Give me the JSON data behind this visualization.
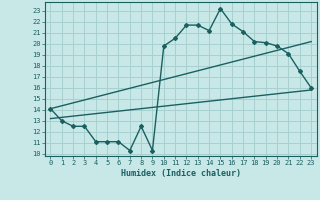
{
  "title": "",
  "xlabel": "Humidex (Indice chaleur)",
  "ylabel": "",
  "background_color": "#c8e8e8",
  "grid_color": "#a8d0d0",
  "line_color": "#1a6060",
  "xlim": [
    -0.5,
    23.5
  ],
  "ylim": [
    9.8,
    23.8
  ],
  "xticks": [
    0,
    1,
    2,
    3,
    4,
    5,
    6,
    7,
    8,
    9,
    10,
    11,
    12,
    13,
    14,
    15,
    16,
    17,
    18,
    19,
    20,
    21,
    22,
    23
  ],
  "yticks": [
    10,
    11,
    12,
    13,
    14,
    15,
    16,
    17,
    18,
    19,
    20,
    21,
    22,
    23
  ],
  "wavy_x": [
    0,
    1,
    2,
    3,
    4,
    5,
    6,
    7,
    8,
    9,
    10,
    11,
    12,
    13,
    14,
    15,
    16,
    17,
    18,
    19,
    20,
    21,
    22,
    23
  ],
  "wavy_y": [
    14.1,
    13.0,
    12.5,
    12.5,
    11.1,
    11.1,
    11.1,
    10.3,
    12.5,
    10.3,
    19.8,
    20.5,
    21.7,
    21.7,
    21.2,
    23.2,
    21.8,
    21.1,
    20.2,
    20.1,
    19.8,
    19.1,
    17.5,
    16.0
  ],
  "line1_x": [
    0,
    23
  ],
  "line1_y": [
    13.2,
    15.8
  ],
  "line2_x": [
    0,
    23
  ],
  "line2_y": [
    14.1,
    20.2
  ]
}
